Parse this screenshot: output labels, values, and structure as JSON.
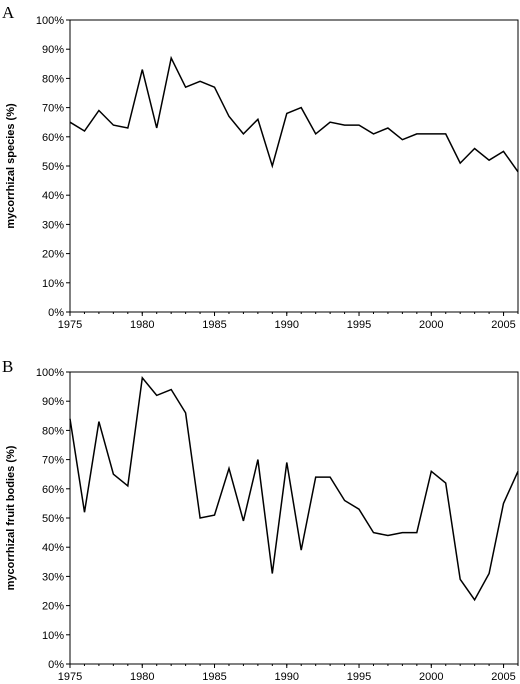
{
  "chart_data": [
    {
      "type": "line",
      "panel": "A",
      "title": "",
      "xlabel": "",
      "ylabel": "mycorrhizal species  (%)",
      "xlim": [
        1975,
        2006
      ],
      "ylim": [
        0,
        100
      ],
      "x_ticks": [
        "1975",
        "1980",
        "1985",
        "1990",
        "1995",
        "2000",
        "2005"
      ],
      "y_ticks": [
        "0%",
        "10%",
        "20%",
        "30%",
        "40%",
        "50%",
        "60%",
        "70%",
        "80%",
        "90%",
        "100%"
      ],
      "grid": false,
      "series": [
        {
          "x": [
            1975,
            1976,
            1977,
            1978,
            1979,
            1980,
            1981,
            1982,
            1983,
            1984,
            1985,
            1986,
            1987,
            1988,
            1989,
            1990,
            1991,
            1992,
            1993,
            1994,
            1995,
            1996,
            1997,
            1998,
            1999,
            2000,
            2001,
            2002,
            2003,
            2004,
            2005,
            2006
          ],
          "values": [
            65,
            62,
            69,
            64,
            63,
            83,
            63,
            87,
            77,
            79,
            77,
            67,
            61,
            66,
            50,
            68,
            70,
            61,
            65,
            64,
            64,
            61,
            63,
            59,
            61,
            61,
            61,
            51,
            56,
            52,
            55,
            48
          ],
          "color": "#000000"
        }
      ]
    },
    {
      "type": "line",
      "panel": "B",
      "title": "",
      "xlabel": "",
      "ylabel": "mycorrhizal fruit bodies (%)",
      "xlim": [
        1975,
        2006
      ],
      "ylim": [
        0,
        100
      ],
      "x_ticks": [
        "1975",
        "1980",
        "1985",
        "1990",
        "1995",
        "2000",
        "2005"
      ],
      "y_ticks": [
        "0%",
        "10%",
        "20%",
        "30%",
        "40%",
        "50%",
        "60%",
        "70%",
        "80%",
        "90%",
        "100%"
      ],
      "grid": false,
      "series": [
        {
          "x": [
            1975,
            1976,
            1977,
            1978,
            1979,
            1980,
            1981,
            1982,
            1983,
            1984,
            1985,
            1986,
            1987,
            1988,
            1989,
            1990,
            1991,
            1992,
            1993,
            1994,
            1995,
            1996,
            1997,
            1998,
            1999,
            2000,
            2001,
            2002,
            2003,
            2004,
            2005,
            2006
          ],
          "values": [
            84,
            52,
            83,
            65,
            61,
            98,
            92,
            94,
            86,
            50,
            51,
            67,
            49,
            70,
            31,
            69,
            39,
            64,
            64,
            56,
            53,
            45,
            44,
            45,
            45,
            66,
            62,
            29,
            22,
            31,
            55,
            66
          ],
          "color": "#000000"
        }
      ]
    }
  ]
}
